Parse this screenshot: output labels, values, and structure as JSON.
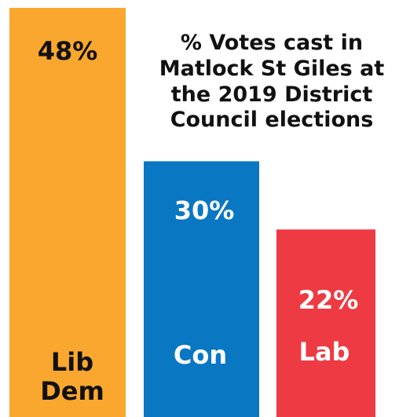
{
  "chart_data": {
    "type": "bar",
    "title_lines": [
      "% Votes cast in",
      "Matlock St Giles at",
      "the 2019 District",
      "Council elections"
    ],
    "categories": [
      [
        "Lib",
        "Dem"
      ],
      [
        "Con"
      ],
      [
        "Lab"
      ]
    ],
    "values": [
      48,
      30,
      22
    ],
    "value_labels": [
      "48%",
      "30%",
      "22%"
    ],
    "colors": [
      "#F9A72E",
      "#0A77C2",
      "#EE3A43"
    ],
    "value_label_colors": [
      "#111111",
      "#ffffff",
      "#ffffff"
    ],
    "category_label_colors": [
      "#111111",
      "#ffffff",
      "#ffffff"
    ],
    "ylim": [
      0,
      48
    ],
    "grid": false,
    "legend": "none"
  }
}
